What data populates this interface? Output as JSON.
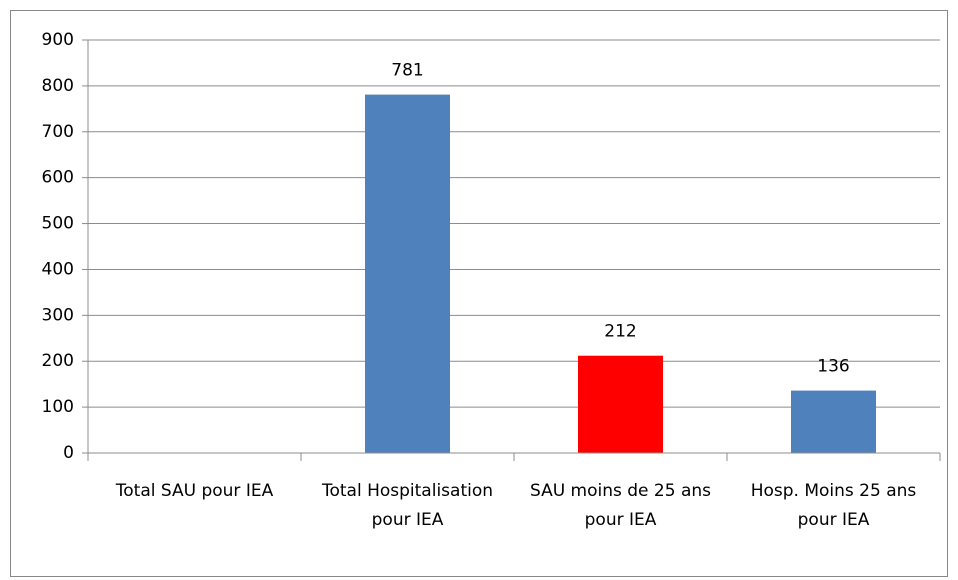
{
  "chart_data": {
    "type": "bar",
    "categories": [
      "Total SAU pour IEA",
      "Total Hospitalisation pour IEA",
      "SAU moins de 25 ans pour IEA",
      "Hosp. Moins 25 ans pour IEA"
    ],
    "values": [
      null,
      781,
      212,
      136
    ],
    "colors": [
      "#4f81bd",
      "#4f81bd",
      "#ff0000",
      "#4f81bd"
    ],
    "ylim": [
      0,
      900
    ],
    "yticks": [
      0,
      100,
      200,
      300,
      400,
      500,
      600,
      700,
      800,
      900
    ],
    "grid": true
  }
}
